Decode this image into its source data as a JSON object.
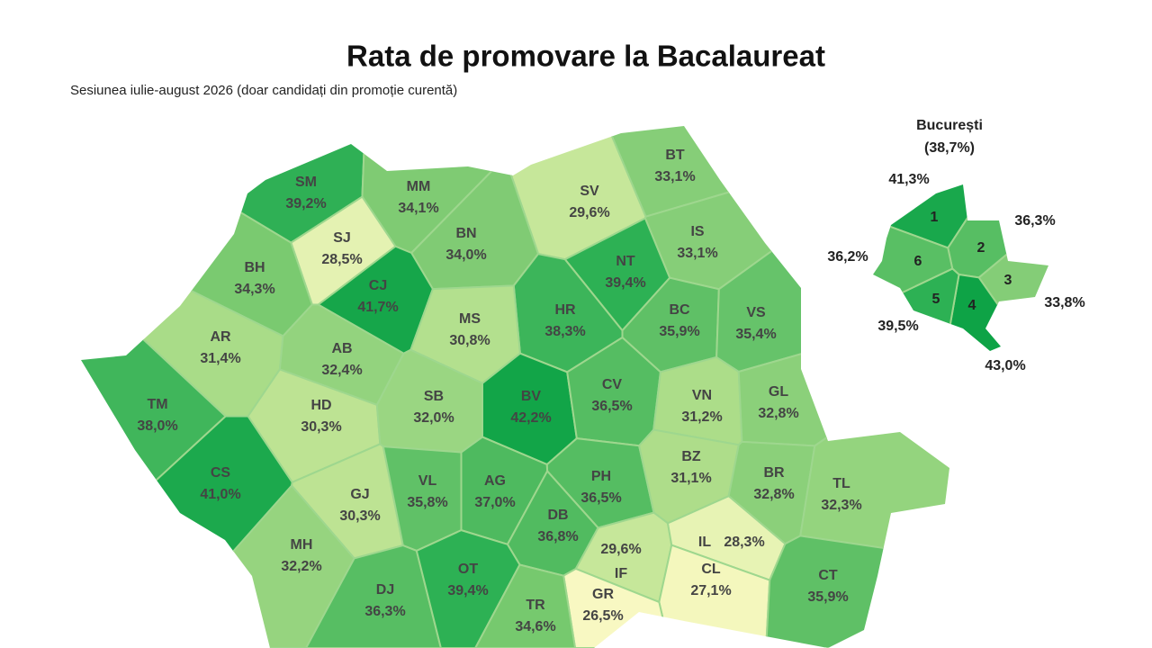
{
  "header": {
    "title": "Rata de promovare la Bacalaureat",
    "subtitle": "Sesiunea iulie-august 2026 (doar candidați din promoție curentă)"
  },
  "counties": [
    {
      "code": "SM",
      "label": "39,2%",
      "color": "#2fb055"
    },
    {
      "code": "MM",
      "label": "34,1%",
      "color": "#7fcb73"
    },
    {
      "code": "BT",
      "label": "33,1%",
      "color": "#86ce78"
    },
    {
      "code": "SV",
      "label": "29,6%",
      "color": "#c6e79a"
    },
    {
      "code": "SJ",
      "label": "28,5%",
      "color": "#e4f2b2"
    },
    {
      "code": "BN",
      "label": "34,0%",
      "color": "#80cb74"
    },
    {
      "code": "IS",
      "label": "33,1%",
      "color": "#86ce78"
    },
    {
      "code": "BH",
      "label": "34,3%",
      "color": "#7aca70"
    },
    {
      "code": "CJ",
      "label": "41,7%",
      "color": "#16a64a"
    },
    {
      "code": "NT",
      "label": "39,4%",
      "color": "#2db154"
    },
    {
      "code": "HR",
      "label": "38,3%",
      "color": "#3cb55a"
    },
    {
      "code": "MS",
      "label": "30,8%",
      "color": "#b3e08e"
    },
    {
      "code": "BC",
      "label": "35,9%",
      "color": "#5fc066"
    },
    {
      "code": "VS",
      "label": "35,4%",
      "color": "#66c36a"
    },
    {
      "code": "AR",
      "label": "31,4%",
      "color": "#a9dc88"
    },
    {
      "code": "AB",
      "label": "32,4%",
      "color": "#93d37e"
    },
    {
      "code": "TM",
      "label": "38,0%",
      "color": "#40b65b"
    },
    {
      "code": "HD",
      "label": "30,3%",
      "color": "#bde393"
    },
    {
      "code": "SB",
      "label": "32,0%",
      "color": "#9ad682"
    },
    {
      "code": "BV",
      "label": "42,2%",
      "color": "#12a548"
    },
    {
      "code": "CV",
      "label": "36,5%",
      "color": "#55bd62"
    },
    {
      "code": "VN",
      "label": "31,2%",
      "color": "#acdd89"
    },
    {
      "code": "GL",
      "label": "32,8%",
      "color": "#8bd07a"
    },
    {
      "code": "CS",
      "label": "41,0%",
      "color": "#1ca94d"
    },
    {
      "code": "GJ",
      "label": "30,3%",
      "color": "#bde393"
    },
    {
      "code": "VL",
      "label": "35,8%",
      "color": "#60c167"
    },
    {
      "code": "AG",
      "label": "37,0%",
      "color": "#4eba5f"
    },
    {
      "code": "PH",
      "label": "36,5%",
      "color": "#55bd62"
    },
    {
      "code": "BZ",
      "label": "31,1%",
      "color": "#aedd8a"
    },
    {
      "code": "BR",
      "label": "32,8%",
      "color": "#8bd07a"
    },
    {
      "code": "TL",
      "label": "32,3%",
      "color": "#94d47e"
    },
    {
      "code": "DB",
      "label": "36,8%",
      "color": "#51bb60"
    },
    {
      "code": "MH",
      "label": "32,2%",
      "color": "#96d47f"
    },
    {
      "code": "IF",
      "label": "29,6%",
      "color": "#c6e79a"
    },
    {
      "code": "IL",
      "label": "28,3%",
      "color": "#e7f3b4"
    },
    {
      "code": "CL",
      "label": "27,1%",
      "color": "#f4f7bd"
    },
    {
      "code": "GR",
      "label": "26,5%",
      "color": "#f8f8c2"
    },
    {
      "code": "DJ",
      "label": "36,3%",
      "color": "#57be63"
    },
    {
      "code": "OT",
      "label": "39,4%",
      "color": "#2db154"
    },
    {
      "code": "TR",
      "label": "34,6%",
      "color": "#76c96e"
    },
    {
      "code": "CT",
      "label": "35,9%",
      "color": "#5fc066"
    }
  ],
  "bucharest": {
    "title": "București",
    "total": "(38,7%)",
    "sectors": [
      {
        "number": 1,
        "label": "41,3%",
        "color": "#19a84c"
      },
      {
        "number": 2,
        "label": "36,3%",
        "color": "#57be63"
      },
      {
        "number": 3,
        "label": "33,8%",
        "color": "#84cd77"
      },
      {
        "number": 4,
        "label": "43,0%",
        "color": "#0ea346"
      },
      {
        "number": 5,
        "label": "39,5%",
        "color": "#2db154"
      },
      {
        "number": 6,
        "label": "36,2%",
        "color": "#59bf64"
      }
    ]
  }
}
